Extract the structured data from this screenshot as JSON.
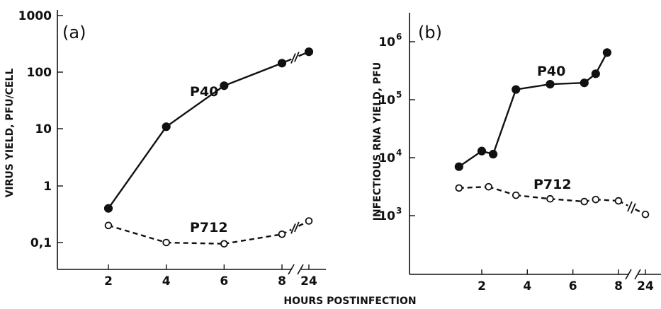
{
  "xlabel": "HOURS POSTINFECTION",
  "chart_data": [
    {
      "type": "line",
      "panel_label": "(a)",
      "ylabel": "VIRUS YIELD,  PFU/CELL",
      "yscale": "log",
      "ylim": [
        0.05,
        1000
      ],
      "y_tick_labels": [
        "1000",
        "100",
        "10",
        "1",
        "0,1"
      ],
      "y_ticks": [
        1000,
        100,
        10,
        1,
        0.1
      ],
      "x_tick_labels": [
        "2",
        "4",
        "6",
        "8",
        "24"
      ],
      "x_ticks": [
        2,
        4,
        6,
        8,
        24
      ],
      "axis_break_after": 8,
      "series": [
        {
          "name": "P40",
          "style": "solid",
          "marker": "filled",
          "x": [
            2,
            4,
            6,
            8,
            24
          ],
          "y": [
            0.4,
            11,
            58,
            145,
            230
          ]
        },
        {
          "name": "P712",
          "style": "dashed",
          "marker": "open",
          "x": [
            2,
            4,
            6,
            8,
            24
          ],
          "y": [
            0.2,
            0.1,
            0.095,
            0.14,
            0.24
          ]
        }
      ]
    },
    {
      "type": "line",
      "panel_label": "(b)",
      "ylabel": "INFECTIOUS  RNA  YIELD,  PFU",
      "yscale": "log",
      "ylim": [
        150,
        3000000
      ],
      "y_tick_labels": [
        "10",
        "10",
        "10",
        "10"
      ],
      "y_tick_exponents": [
        "6",
        "5",
        "4",
        "3"
      ],
      "y_ticks": [
        1000000,
        100000,
        10000,
        1000
      ],
      "x_tick_labels": [
        "2",
        "4",
        "6",
        "8",
        "24"
      ],
      "x_ticks": [
        2,
        4,
        6,
        8,
        24
      ],
      "axis_break_after": 8,
      "series": [
        {
          "name": "P40",
          "style": "solid",
          "marker": "filled",
          "x": [
            1,
            2,
            2.5,
            3.5,
            5,
            6.5,
            7,
            7.5
          ],
          "y": [
            7000,
            13000,
            11500,
            150000,
            185000,
            195000,
            280000,
            650000
          ]
        },
        {
          "name": "P712",
          "style": "dashed",
          "marker": "open",
          "x": [
            1,
            2.3,
            3.5,
            5,
            6.5,
            7,
            8,
            24
          ],
          "y": [
            3000,
            3150,
            2250,
            1950,
            1750,
            1900,
            1800,
            1050
          ]
        }
      ]
    }
  ]
}
